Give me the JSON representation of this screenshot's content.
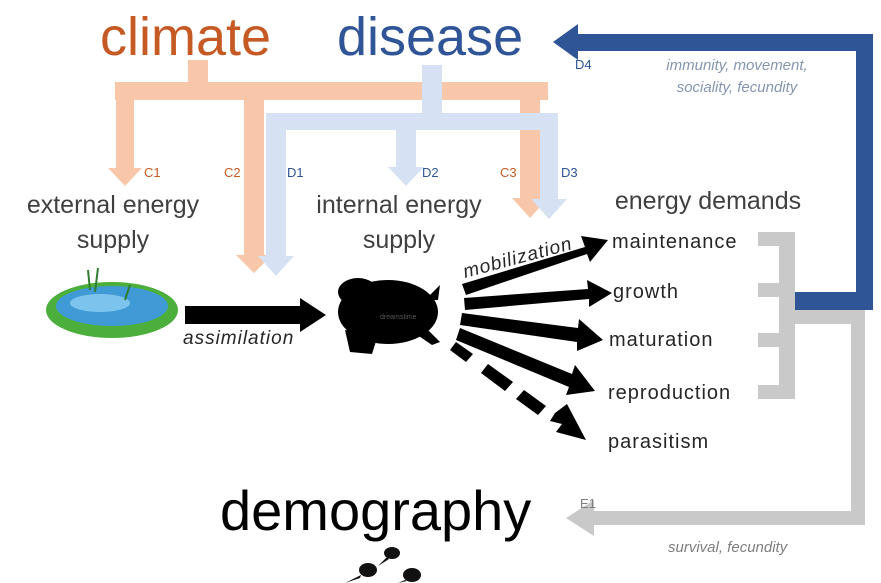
{
  "drivers": [
    "climate",
    "disease"
  ],
  "pathway_labels": {
    "c1": "C1",
    "c2": "C2",
    "c3": "C3",
    "d1": "D1",
    "d2": "D2",
    "d3": "D3",
    "d4": "D4",
    "e1": "E1"
  },
  "d4_note": [
    "immunity, movement,",
    "sociality, fecundity"
  ],
  "nodes": {
    "external_supply": [
      "external energy",
      "supply"
    ],
    "internal_supply": [
      "internal energy",
      "supply"
    ],
    "energy_demands": "energy demands"
  },
  "processes": {
    "assimilation": "assimilation",
    "mobilization": "mobilization"
  },
  "demands": [
    "maintenance",
    "growth",
    "maturation",
    "reproduction",
    "parasitism"
  ],
  "watermark": "dreamstime",
  "outcome": "demography",
  "e1_note": "survival, fecundity"
}
